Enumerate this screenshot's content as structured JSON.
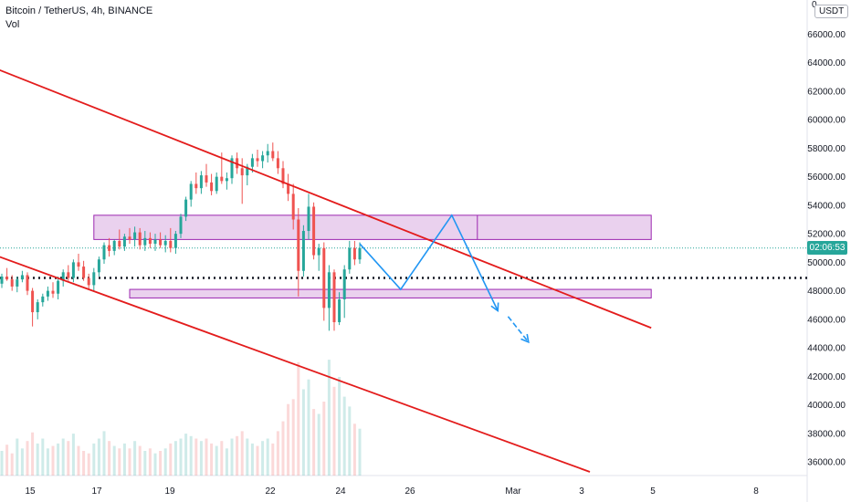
{
  "header": {
    "title": "Bitcoin / TetherUS, 4h, BINANCE",
    "indicator": "Vol"
  },
  "currency_badge": "USDT",
  "top_partial_label": "0",
  "price_badge": "02:06:53",
  "colors": {
    "up": "#26a69a",
    "down": "#ef5350",
    "channel": "#e31c1c",
    "zone_fill": "#e1bee7",
    "zone_stroke": "#9c27b0",
    "projection": "#2196f3",
    "price_line": "#26a69a",
    "level_line": "#131722",
    "badge_bg": "#26a69a"
  },
  "chart_data": {
    "type": "candlestick",
    "title": "Bitcoin / TetherUS, 4h, BINANCE",
    "y_axis": {
      "ticks": [
        "66000.00",
        "64000.00",
        "62000.00",
        "60000.00",
        "58000.00",
        "56000.00",
        "54000.00",
        "52000.00",
        "50000.00",
        "48000.00",
        "46000.00",
        "44000.00",
        "42000.00",
        "40000.00",
        "38000.00",
        "36000.00"
      ],
      "range": [
        35000,
        67000
      ],
      "position": "right"
    },
    "x_axis": {
      "ticks": [
        "15",
        "17",
        "19",
        "22",
        "24",
        "26",
        "Mar",
        "3",
        "5",
        "8"
      ]
    },
    "current_price": 51000,
    "level_line_price": 48900,
    "candles": [
      [
        48500,
        49200,
        48200,
        49000
      ],
      [
        49000,
        49600,
        48700,
        48800
      ],
      [
        48800,
        49100,
        48000,
        48300
      ],
      [
        48300,
        49000,
        47900,
        48800
      ],
      [
        48800,
        49400,
        48600,
        49100
      ],
      [
        49100,
        49300,
        47700,
        48000
      ],
      [
        48000,
        48200,
        45500,
        46500
      ],
      [
        46500,
        47400,
        46000,
        47200
      ],
      [
        47200,
        47800,
        46900,
        47600
      ],
      [
        47600,
        48300,
        47300,
        48000
      ],
      [
        48000,
        48600,
        47500,
        47800
      ],
      [
        47800,
        49000,
        47400,
        48700
      ],
      [
        48700,
        49500,
        48300,
        49300
      ],
      [
        49300,
        49800,
        48700,
        48900
      ],
      [
        48900,
        50200,
        48600,
        50000
      ],
      [
        50000,
        50600,
        49400,
        49700
      ],
      [
        49700,
        50100,
        48700,
        48900
      ],
      [
        48900,
        49200,
        48100,
        48400
      ],
      [
        48400,
        49600,
        48000,
        49300
      ],
      [
        49300,
        50400,
        49000,
        50200
      ],
      [
        50200,
        51400,
        49900,
        51200
      ],
      [
        51200,
        51700,
        50400,
        50800
      ],
      [
        50800,
        51600,
        50500,
        51500
      ],
      [
        51500,
        52300,
        50900,
        51100
      ],
      [
        51100,
        52000,
        50800,
        51800
      ],
      [
        51800,
        52400,
        51300,
        51600
      ],
      [
        51600,
        52500,
        51100,
        52100
      ],
      [
        52100,
        52400,
        50900,
        51200
      ],
      [
        51200,
        52200,
        50800,
        51700
      ],
      [
        51700,
        52100,
        51000,
        51300
      ],
      [
        51300,
        52000,
        50800,
        51600
      ],
      [
        51600,
        52100,
        51000,
        51200
      ],
      [
        51200,
        51900,
        50700,
        51500
      ],
      [
        51500,
        52400,
        50700,
        51000
      ],
      [
        51000,
        52200,
        50600,
        52000
      ],
      [
        52000,
        53400,
        51700,
        53200
      ],
      [
        53200,
        54600,
        52900,
        54400
      ],
      [
        54400,
        55700,
        53900,
        55500
      ],
      [
        55500,
        56300,
        54800,
        55200
      ],
      [
        55200,
        56400,
        54800,
        56100
      ],
      [
        56100,
        56900,
        55300,
        55600
      ],
      [
        55600,
        56200,
        54700,
        55000
      ],
      [
        55000,
        56300,
        54800,
        56000
      ],
      [
        56000,
        57700,
        55500,
        55700
      ],
      [
        55700,
        56300,
        55100,
        55900
      ],
      [
        55900,
        57500,
        55500,
        57300
      ],
      [
        57300,
        57700,
        56200,
        56600
      ],
      [
        56600,
        57300,
        54100,
        56100
      ],
      [
        56100,
        56900,
        55400,
        56700
      ],
      [
        56700,
        57600,
        56300,
        57300
      ],
      [
        57300,
        57900,
        56700,
        57100
      ],
      [
        57100,
        57800,
        56600,
        57500
      ],
      [
        57500,
        58300,
        57000,
        57800
      ],
      [
        57800,
        58400,
        57100,
        57300
      ],
      [
        57300,
        57800,
        56200,
        56600
      ],
      [
        56600,
        57100,
        55200,
        55500
      ],
      [
        55500,
        56200,
        54300,
        54800
      ],
      [
        54800,
        55500,
        52300,
        53000
      ],
      [
        53000,
        53800,
        47600,
        49400
      ],
      [
        49400,
        52600,
        49000,
        52200
      ],
      [
        52200,
        54800,
        51600,
        53900
      ],
      [
        53900,
        54200,
        50200,
        50500
      ],
      [
        50500,
        51300,
        49400,
        51000
      ],
      [
        51000,
        51400,
        45900,
        46800
      ],
      [
        46800,
        49800,
        45200,
        49300
      ],
      [
        49300,
        49500,
        45200,
        45800
      ],
      [
        45800,
        47900,
        45600,
        47400
      ],
      [
        47400,
        49800,
        46100,
        49500
      ],
      [
        49500,
        51500,
        49200,
        51000
      ],
      [
        51000,
        51500,
        49800,
        50200
      ],
      [
        50200,
        51400,
        49900,
        51000
      ]
    ],
    "volume": [
      20,
      25,
      18,
      30,
      22,
      28,
      35,
      26,
      30,
      22,
      24,
      26,
      30,
      28,
      34,
      24,
      20,
      18,
      26,
      30,
      36,
      28,
      24,
      22,
      26,
      22,
      28,
      24,
      20,
      22,
      18,
      20,
      22,
      26,
      28,
      30,
      34,
      32,
      30,
      28,
      30,
      26,
      24,
      28,
      22,
      30,
      32,
      36,
      30,
      26,
      24,
      28,
      30,
      26,
      36,
      44,
      58,
      62,
      92,
      70,
      78,
      54,
      50,
      60,
      94,
      72,
      80,
      64,
      56,
      42,
      38
    ],
    "annotations": {
      "channel_lines": [
        {
          "from_index": -9,
          "from_price": 64700,
          "to_index": 127,
          "to_price": 45400
        },
        {
          "from_index": -9,
          "from_price": 51500,
          "to_index": 115,
          "to_price": 35300
        }
      ],
      "zones": [
        {
          "from_index": 18,
          "to_index": 127,
          "low_price": 51600,
          "high_price": 53300,
          "divider_index": 93
        },
        {
          "from_index": 25,
          "to_index": 127,
          "low_price": 47500,
          "high_price": 48100
        }
      ],
      "projection_path": [
        {
          "index": 70,
          "price": 51300
        },
        {
          "index": 78,
          "price": 48100
        },
        {
          "index": 88,
          "price": 53300
        },
        {
          "index": 97,
          "price": 46600
        }
      ],
      "projection_arrow": [
        {
          "index": 99,
          "price": 46200
        },
        {
          "index": 103,
          "price": 44400
        }
      ]
    }
  }
}
